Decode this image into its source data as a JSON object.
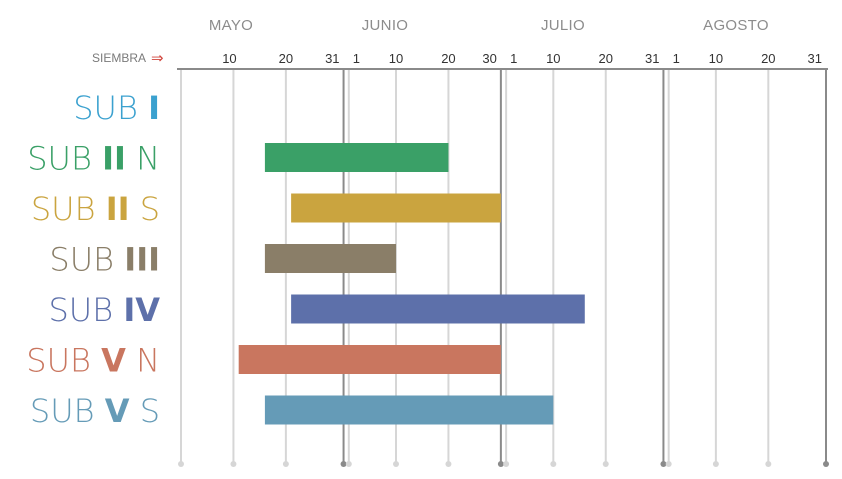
{
  "chart_data": {
    "type": "bar",
    "orientation": "horizontal-range",
    "title": "",
    "xlabel": "",
    "ylabel": "",
    "axis_prefix": "SIEMBRA",
    "arrow": "⇒",
    "months": [
      {
        "label": "MAYO",
        "start": 0
      },
      {
        "label": "JUNIO",
        "start": 31
      },
      {
        "label": "JULIO",
        "start": 61
      },
      {
        "label": "AGOSTO",
        "start": 92
      }
    ],
    "xlim": [
      0,
      123
    ],
    "ticks": [
      {
        "label": "10",
        "x": 10,
        "major": false
      },
      {
        "label": "20",
        "x": 20,
        "major": false
      },
      {
        "label": "31",
        "x": 31,
        "major": true
      },
      {
        "label": "1",
        "x": 32,
        "major": false
      },
      {
        "label": "10",
        "x": 41,
        "major": false
      },
      {
        "label": "20",
        "x": 51,
        "major": false
      },
      {
        "label": "30",
        "x": 61,
        "major": true
      },
      {
        "label": "1",
        "x": 62,
        "major": false
      },
      {
        "label": "10",
        "x": 71,
        "major": false
      },
      {
        "label": "20",
        "x": 81,
        "major": false
      },
      {
        "label": "31",
        "x": 92,
        "major": true
      },
      {
        "label": "1",
        "x": 93,
        "major": false
      },
      {
        "label": "10",
        "x": 102,
        "major": false
      },
      {
        "label": "20",
        "x": 112,
        "major": false
      },
      {
        "label": "31",
        "x": 123,
        "major": true
      }
    ],
    "series": [
      {
        "prefix": "SUB",
        "numeral": "I",
        "suffix": "",
        "color": "#3ba1cf",
        "start": null,
        "end": null
      },
      {
        "prefix": "SUB",
        "numeral": "II",
        "suffix": "N",
        "color": "#3aa067",
        "start": 16,
        "end": 51
      },
      {
        "prefix": "SUB",
        "numeral": "II",
        "suffix": "S",
        "color": "#caa43f",
        "start": 21,
        "end": 61
      },
      {
        "prefix": "SUB",
        "numeral": "III",
        "suffix": "",
        "color": "#8a7e68",
        "start": 16,
        "end": 41
      },
      {
        "prefix": "SUB",
        "numeral": "IV",
        "suffix": "",
        "color": "#5d70aa",
        "start": 21,
        "end": 77
      },
      {
        "prefix": "SUB",
        "numeral": "V",
        "suffix": "N",
        "color": "#c9765f",
        "start": 11,
        "end": 61
      },
      {
        "prefix": "SUB",
        "numeral": "V",
        "suffix": "S",
        "color": "#659bb7",
        "start": 16,
        "end": 71
      }
    ],
    "grid": true,
    "legend": "none"
  },
  "colors": {
    "major_line": "#8a8a8a",
    "minor_line": "#d6d6d6",
    "axis_line": "#8a8a8a",
    "arrow": "#d0443c"
  }
}
